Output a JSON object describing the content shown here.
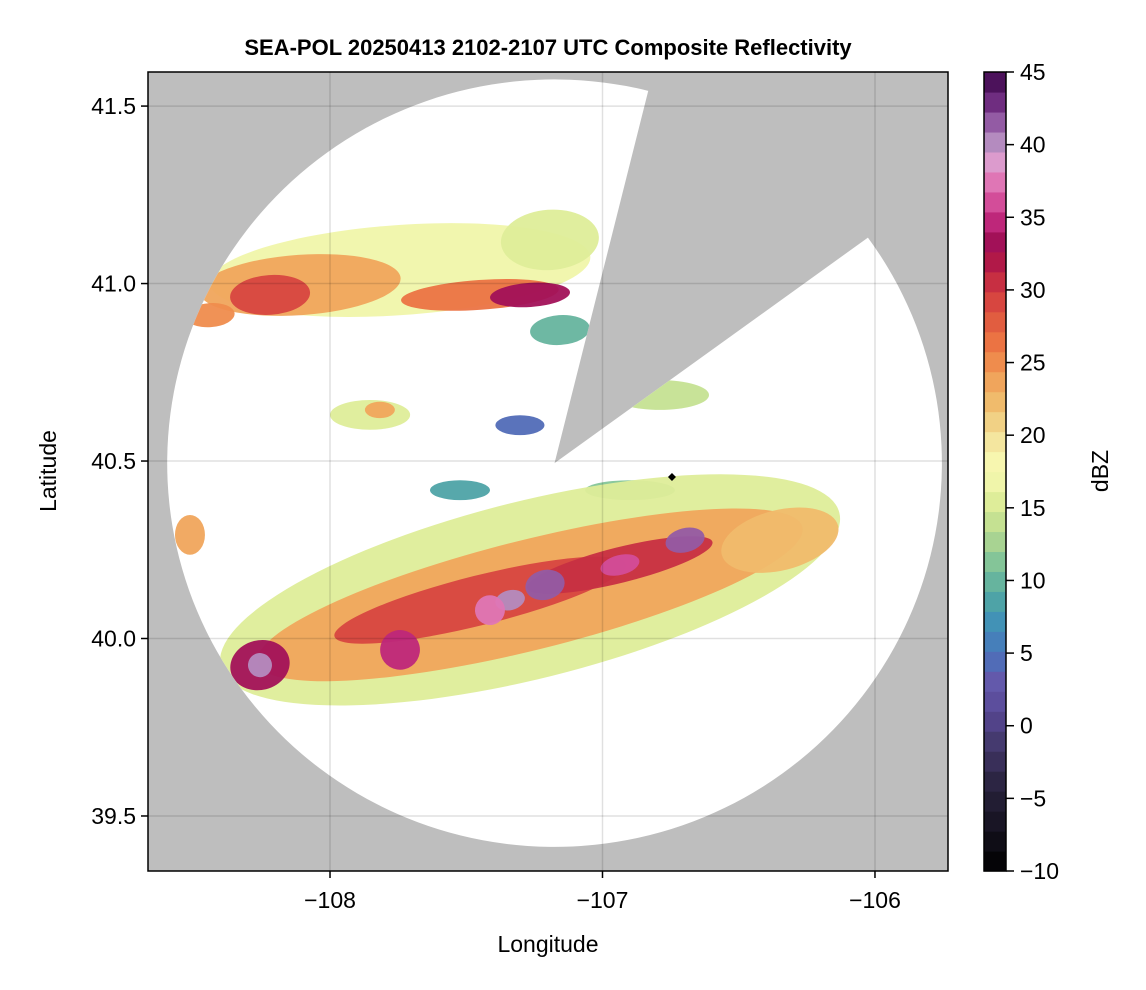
{
  "chart_data": {
    "type": "heatmap",
    "title": "SEA-POL 20250413 2102-2107 UTC Composite Reflectivity",
    "xlabel": "Longitude",
    "ylabel": "Latitude",
    "xlim": [
      -108.668,
      -105.732
    ],
    "ylim": [
      39.345,
      41.596
    ],
    "xticks": [
      -108,
      -107,
      -106
    ],
    "xtick_labels": [
      "−108",
      "−107",
      "−106"
    ],
    "yticks": [
      39.5,
      40.0,
      40.5,
      41.0,
      41.5
    ],
    "ytick_labels": [
      "39.5",
      "40.0",
      "40.5",
      "41.0",
      "41.5"
    ],
    "grid": true,
    "background_color": "#bebebe",
    "colorbar": {
      "label": "dBZ",
      "range": [
        -10,
        45
      ],
      "ticks": [
        -10,
        -5,
        0,
        5,
        10,
        15,
        20,
        25,
        30,
        35,
        40,
        45
      ],
      "tick_labels": [
        "−10",
        "−5",
        "0",
        "5",
        "10",
        "15",
        "20",
        "25",
        "30",
        "35",
        "40",
        "45"
      ],
      "levels": 40,
      "stops": [
        [
          -10,
          "#000000"
        ],
        [
          -7,
          "#161320"
        ],
        [
          -4,
          "#2a2440"
        ],
        [
          -1,
          "#463a70"
        ],
        [
          1,
          "#584896"
        ],
        [
          3,
          "#6458aa"
        ],
        [
          5,
          "#4a74bc"
        ],
        [
          7,
          "#4090b8"
        ],
        [
          9,
          "#52a8a2"
        ],
        [
          11,
          "#7cc29a"
        ],
        [
          13,
          "#b0d690"
        ],
        [
          15,
          "#d8ea94"
        ],
        [
          17,
          "#f2f6ac"
        ],
        [
          18.5,
          "#f8f6b0"
        ],
        [
          20,
          "#f2e098"
        ],
        [
          22,
          "#f0c070"
        ],
        [
          24,
          "#f0a058"
        ],
        [
          26,
          "#ee7a44"
        ],
        [
          28,
          "#e05a40"
        ],
        [
          30,
          "#d03840"
        ],
        [
          32,
          "#b01848"
        ],
        [
          33,
          "#9c0c50"
        ],
        [
          35,
          "#c42c82"
        ],
        [
          37,
          "#e06aad"
        ],
        [
          39,
          "#dca0d0"
        ],
        [
          40.5,
          "#a985bb"
        ],
        [
          42,
          "#8a4a9a"
        ],
        [
          43.5,
          "#5e1c70"
        ],
        [
          45,
          "#3d0a4a"
        ]
      ]
    },
    "radar": {
      "center_lon": -107.176,
      "center_lat": 40.494,
      "range_km": 120,
      "blocked_sector_azimuth_deg": [
        14,
        54
      ]
    },
    "echoes": [
      {
        "region": "north-band",
        "lon": -107.743,
        "lat": 41.038,
        "rlon": 0.7,
        "rlat": 0.127,
        "dbz": 17
      },
      {
        "region": "north-band",
        "lon": -107.193,
        "lat": 41.123,
        "rlon": 0.18,
        "rlat": 0.085,
        "dbz": 15
      },
      {
        "region": "north-band",
        "lon": -108.11,
        "lat": 40.996,
        "rlon": 0.37,
        "rlat": 0.085,
        "dbz": 23
      },
      {
        "region": "north-band",
        "lon": -107.45,
        "lat": 40.968,
        "rlon": 0.29,
        "rlat": 0.042,
        "dbz": 27
      },
      {
        "region": "north-band",
        "lon": -108.22,
        "lat": 40.968,
        "rlon": 0.147,
        "rlat": 0.056,
        "dbz": 29
      },
      {
        "region": "north-band",
        "lon": -107.266,
        "lat": 40.968,
        "rlon": 0.147,
        "rlat": 0.034,
        "dbz": 33
      },
      {
        "region": "north-band",
        "lon": -107.156,
        "lat": 40.869,
        "rlon": 0.11,
        "rlat": 0.042,
        "dbz": 10
      },
      {
        "region": "north-band",
        "lon": -108.44,
        "lat": 40.911,
        "rlon": 0.09,
        "rlat": 0.034,
        "dbz": 25
      },
      {
        "region": "cells",
        "lon": -107.853,
        "lat": 40.63,
        "rlon": 0.147,
        "rlat": 0.042,
        "dbz": 15
      },
      {
        "region": "cells",
        "lon": -107.817,
        "lat": 40.644,
        "rlon": 0.055,
        "rlat": 0.023,
        "dbz": 24
      },
      {
        "region": "cells",
        "lon": -106.789,
        "lat": 40.686,
        "rlon": 0.18,
        "rlat": 0.042,
        "dbz": 14
      },
      {
        "region": "cells",
        "lon": -106.899,
        "lat": 40.418,
        "rlon": 0.165,
        "rlat": 0.028,
        "dbz": 11
      },
      {
        "region": "cells",
        "lon": -107.523,
        "lat": 40.418,
        "rlon": 0.11,
        "rlat": 0.028,
        "dbz": 8
      },
      {
        "region": "cells",
        "lon": -107.303,
        "lat": 40.601,
        "rlon": 0.09,
        "rlat": 0.028,
        "dbz": 5
      },
      {
        "region": "cells",
        "lon": -108.514,
        "lat": 40.292,
        "rlon": 0.055,
        "rlat": 0.056,
        "dbz": 24
      },
      {
        "region": "south-band",
        "lon": -107.266,
        "lat": 40.137,
        "rlon": 1.17,
        "rlat": 0.25,
        "dbz": 15
      },
      {
        "region": "south-band",
        "lon": -107.266,
        "lat": 40.123,
        "rlon": 1.03,
        "rlat": 0.155,
        "dbz": 23
      },
      {
        "region": "south-band",
        "lon": -106.349,
        "lat": 40.277,
        "rlon": 0.22,
        "rlat": 0.085,
        "dbz": 22
      },
      {
        "region": "south-band",
        "lon": -107.45,
        "lat": 40.108,
        "rlon": 0.55,
        "rlat": 0.07,
        "dbz": 29
      },
      {
        "region": "south-band",
        "lon": -106.936,
        "lat": 40.207,
        "rlon": 0.35,
        "rlat": 0.05,
        "dbz": 30
      },
      {
        "region": "south-band",
        "lon": -108.257,
        "lat": 39.925,
        "rlon": 0.11,
        "rlat": 0.07,
        "dbz": 33
      },
      {
        "region": "south-band",
        "lon": -108.257,
        "lat": 39.925,
        "rlon": 0.044,
        "rlat": 0.034,
        "dbz": 40
      },
      {
        "region": "south-band",
        "lon": -107.211,
        "lat": 40.151,
        "rlon": 0.073,
        "rlat": 0.042,
        "dbz": 41
      },
      {
        "region": "south-band",
        "lon": -107.339,
        "lat": 40.108,
        "rlon": 0.055,
        "rlat": 0.028,
        "dbz": 40
      },
      {
        "region": "south-band",
        "lon": -106.697,
        "lat": 40.277,
        "rlon": 0.073,
        "rlat": 0.034,
        "dbz": 41
      },
      {
        "region": "south-band",
        "lon": -106.936,
        "lat": 40.207,
        "rlon": 0.073,
        "rlat": 0.028,
        "dbz": 36
      },
      {
        "region": "south-band",
        "lon": -107.413,
        "lat": 40.08,
        "rlon": 0.055,
        "rlat": 0.042,
        "dbz": 38
      },
      {
        "region": "south-band",
        "lon": -107.743,
        "lat": 39.968,
        "rlon": 0.073,
        "rlat": 0.056,
        "dbz": 34
      }
    ],
    "marker": {
      "lon": -106.745,
      "lat": 40.455,
      "symbol": "diamond"
    }
  }
}
